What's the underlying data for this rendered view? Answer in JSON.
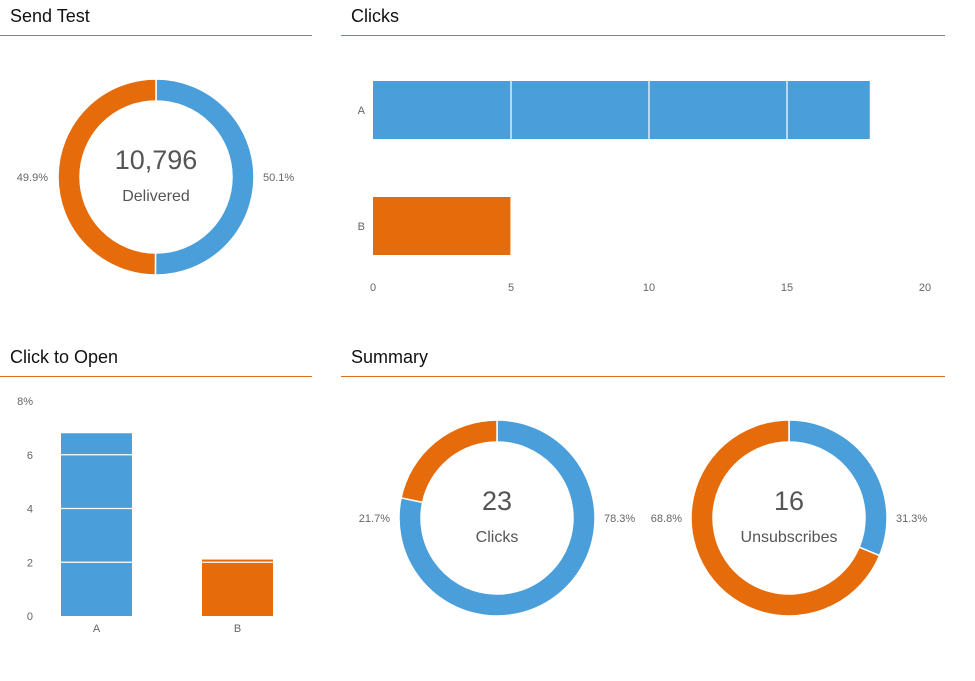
{
  "colors": {
    "series_a": "#4a9fda",
    "series_b": "#e66b0a",
    "divider": "#e06d1a",
    "axis_text": "#666666",
    "center_text": "#555555"
  },
  "panels": {
    "send_test": {
      "title": "Send Test"
    },
    "clicks": {
      "title": "Clicks"
    },
    "click_to_open": {
      "title": "Click to Open"
    },
    "summary": {
      "title": "Summary"
    }
  },
  "chart_data": [
    {
      "id": "send_test",
      "type": "pie",
      "title": "Send Test",
      "center_value": "10,796",
      "center_label": "Delivered",
      "slices": [
        {
          "name": "A",
          "value": 50.1,
          "label": "50.1%"
        },
        {
          "name": "B",
          "value": 49.9,
          "label": "49.9%"
        }
      ]
    },
    {
      "id": "clicks",
      "type": "bar",
      "orientation": "horizontal",
      "title": "Clicks",
      "categories": [
        "A",
        "B"
      ],
      "values": [
        18,
        5
      ],
      "xlim": [
        0,
        20
      ],
      "ticks": [
        "0",
        "5",
        "10",
        "15",
        "20"
      ]
    },
    {
      "id": "click_to_open",
      "type": "bar",
      "orientation": "vertical",
      "title": "Click to Open",
      "categories": [
        "A",
        "B"
      ],
      "values": [
        6.8,
        2.1
      ],
      "ylim": [
        0,
        8
      ],
      "ticks": [
        "0",
        "2",
        "4",
        "6",
        "8%"
      ]
    },
    {
      "id": "summary_clicks",
      "type": "pie",
      "title": "Summary",
      "center_value": "23",
      "center_label": "Clicks",
      "slices": [
        {
          "name": "A",
          "value": 78.3,
          "label": "78.3%"
        },
        {
          "name": "B",
          "value": 21.7,
          "label": "21.7%"
        }
      ]
    },
    {
      "id": "summary_unsubscribes",
      "type": "pie",
      "title": "Summary",
      "center_value": "16",
      "center_label": "Unsubscribes",
      "slices": [
        {
          "name": "A",
          "value": 31.3,
          "label": "31.3%"
        },
        {
          "name": "B",
          "value": 68.8,
          "label": "68.8%"
        }
      ]
    }
  ]
}
